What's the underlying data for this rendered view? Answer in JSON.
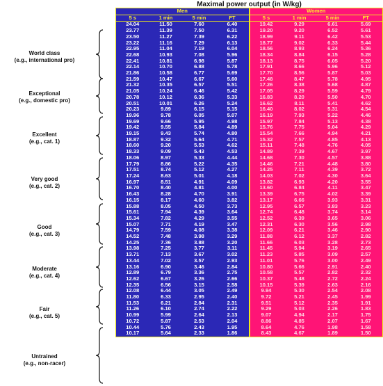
{
  "title": "Maximal power output (in W/kg)",
  "groups": {
    "men": "Men",
    "women": "Women"
  },
  "columns": [
    "5 s",
    "1 min",
    "5 min",
    "FT"
  ],
  "categories": [
    {
      "name": "World class",
      "desc": "(e.g., international pro)"
    },
    {
      "name": "Exceptional",
      "desc": "(e.g., domestic pro)"
    },
    {
      "name": "Excellent",
      "desc": "(e.g., cat. 1)"
    },
    {
      "name": "Very good",
      "desc": "(e.g., cat. 2)"
    },
    {
      "name": "Good",
      "desc": "(e.g., cat. 3)"
    },
    {
      "name": "Moderate",
      "desc": "(e.g., cat. 4)"
    },
    {
      "name": "Fair",
      "desc": "(e.g., cat. 5)"
    },
    {
      "name": "Untrained",
      "desc": "(e.g., non-racer)"
    }
  ],
  "rows": [
    [
      "24.04",
      "11.50",
      "7.60",
      "6.40",
      "19.42",
      "9.29",
      "6.61",
      "5.69"
    ],
    [
      "23.77",
      "11.39",
      "7.50",
      "6.31",
      "19.20",
      "9.20",
      "6.52",
      "5.61"
    ],
    [
      "23.50",
      "11.27",
      "7.39",
      "6.22",
      "18.99",
      "9.11",
      "6.42",
      "5.53"
    ],
    [
      "23.22",
      "11.16",
      "7.29",
      "6.13",
      "18.77",
      "9.02",
      "6.33",
      "5.44"
    ],
    [
      "22.95",
      "11.04",
      "7.19",
      "6.04",
      "18.56",
      "8.93",
      "6.24",
      "5.36"
    ],
    [
      "22.68",
      "10.93",
      "7.08",
      "5.96",
      "18.34",
      "8.84",
      "6.15",
      "5.28"
    ],
    [
      "22.41",
      "10.81",
      "6.98",
      "5.87",
      "18.13",
      "8.75",
      "6.05",
      "5.20"
    ],
    [
      "22.14",
      "10.70",
      "6.88",
      "5.78",
      "17.91",
      "8.66",
      "5.96",
      "5.12"
    ],
    [
      "21.86",
      "10.58",
      "6.77",
      "5.69",
      "17.70",
      "8.56",
      "5.87",
      "5.03"
    ],
    [
      "21.59",
      "10.47",
      "6.67",
      "5.60",
      "17.48",
      "8.47",
      "5.78",
      "4.95"
    ],
    [
      "21.32",
      "10.35",
      "6.57",
      "5.51",
      "17.26",
      "8.38",
      "5.68",
      "4.87"
    ],
    [
      "21.05",
      "10.24",
      "6.46",
      "5.42",
      "17.05",
      "8.29",
      "5.59",
      "4.79"
    ],
    [
      "20.78",
      "10.12",
      "6.36",
      "5.33",
      "16.83",
      "8.20",
      "5.50",
      "4.70"
    ],
    [
      "20.51",
      "10.01",
      "6.26",
      "5.24",
      "16.62",
      "8.11",
      "5.41",
      "4.62"
    ],
    [
      "20.23",
      "9.89",
      "6.15",
      "5.15",
      "16.40",
      "8.02",
      "5.31",
      "4.54"
    ],
    [
      "19.96",
      "9.78",
      "6.05",
      "5.07",
      "16.19",
      "7.93",
      "5.22",
      "4.46"
    ],
    [
      "19.69",
      "9.66",
      "5.95",
      "4.98",
      "15.97",
      "7.84",
      "5.13",
      "4.38"
    ],
    [
      "19.42",
      "9.55",
      "5.84",
      "4.89",
      "15.76",
      "7.75",
      "5.04",
      "4.29"
    ],
    [
      "19.15",
      "9.43",
      "5.74",
      "4.80",
      "15.54",
      "7.66",
      "4.94",
      "4.21"
    ],
    [
      "18.87",
      "9.32",
      "5.64",
      "4.71",
      "15.32",
      "7.57",
      "4.85",
      "4.13"
    ],
    [
      "18.60",
      "9.20",
      "5.53",
      "4.62",
      "15.11",
      "7.48",
      "4.76",
      "4.05"
    ],
    [
      "18.33",
      "9.09",
      "5.43",
      "4.53",
      "14.89",
      "7.39",
      "4.67",
      "3.97"
    ],
    [
      "18.06",
      "8.97",
      "5.33",
      "4.44",
      "14.68",
      "7.30",
      "4.57",
      "3.88"
    ],
    [
      "17.79",
      "8.86",
      "5.22",
      "4.35",
      "14.46",
      "7.21",
      "4.48",
      "3.80"
    ],
    [
      "17.51",
      "8.74",
      "5.12",
      "4.27",
      "14.25",
      "7.11",
      "4.39",
      "3.72"
    ],
    [
      "17.24",
      "8.63",
      "5.01",
      "4.18",
      "14.03",
      "7.02",
      "4.30",
      "3.64"
    ],
    [
      "16.97",
      "8.51",
      "4.91",
      "4.09",
      "13.82",
      "6.93",
      "4.20",
      "3.55"
    ],
    [
      "16.70",
      "8.40",
      "4.81",
      "4.00",
      "13.60",
      "6.84",
      "4.11",
      "3.47"
    ],
    [
      "16.43",
      "8.28",
      "4.70",
      "3.91",
      "13.39",
      "6.75",
      "4.02",
      "3.39"
    ],
    [
      "16.15",
      "8.17",
      "4.60",
      "3.82",
      "13.17",
      "6.66",
      "3.93",
      "3.31"
    ],
    [
      "15.88",
      "8.05",
      "4.50",
      "3.73",
      "12.95",
      "6.57",
      "3.83",
      "3.23"
    ],
    [
      "15.61",
      "7.94",
      "4.39",
      "3.64",
      "12.74",
      "6.48",
      "3.74",
      "3.14"
    ],
    [
      "15.34",
      "7.82",
      "4.29",
      "3.55",
      "12.52",
      "6.39",
      "3.65",
      "3.06"
    ],
    [
      "15.07",
      "7.71",
      "4.19",
      "3.47",
      "12.31",
      "6.30",
      "3.56",
      "2.98"
    ],
    [
      "14.79",
      "7.59",
      "4.08",
      "3.38",
      "12.09",
      "6.21",
      "3.46",
      "2.90"
    ],
    [
      "14.52",
      "7.48",
      "3.98",
      "3.29",
      "11.88",
      "6.12",
      "3.37",
      "2.82"
    ],
    [
      "14.25",
      "7.36",
      "3.88",
      "3.20",
      "11.66",
      "6.03",
      "3.28",
      "2.73"
    ],
    [
      "13.98",
      "7.25",
      "3.77",
      "3.11",
      "11.45",
      "5.94",
      "3.19",
      "2.65"
    ],
    [
      "13.71",
      "7.13",
      "3.67",
      "3.02",
      "11.23",
      "5.85",
      "3.09",
      "2.57"
    ],
    [
      "13.44",
      "7.02",
      "3.57",
      "2.93",
      "11.01",
      "5.76",
      "3.00",
      "2.49"
    ],
    [
      "13.16",
      "6.90",
      "3.46",
      "2.84",
      "10.80",
      "5.66",
      "2.91",
      "2.40"
    ],
    [
      "12.89",
      "6.79",
      "3.36",
      "2.75",
      "10.58",
      "5.57",
      "2.82",
      "2.32"
    ],
    [
      "12.62",
      "6.67",
      "3.26",
      "2.66",
      "10.37",
      "5.48",
      "2.72",
      "2.24"
    ],
    [
      "12.35",
      "6.56",
      "3.15",
      "2.58",
      "10.15",
      "5.39",
      "2.63",
      "2.16"
    ],
    [
      "12.08",
      "6.44",
      "3.05",
      "2.49",
      "9.94",
      "5.30",
      "2.54",
      "2.08"
    ],
    [
      "11.80",
      "6.33",
      "2.95",
      "2.40",
      "9.72",
      "5.21",
      "2.45",
      "1.99"
    ],
    [
      "11.53",
      "6.21",
      "2.84",
      "2.31",
      "9.51",
      "5.12",
      "2.35",
      "1.91"
    ],
    [
      "11.26",
      "6.10",
      "2.74",
      "2.22",
      "9.29",
      "5.03",
      "2.26",
      "1.83"
    ],
    [
      "10.99",
      "5.99",
      "2.64",
      "2.13",
      "9.07",
      "4.94",
      "2.17",
      "1.75"
    ],
    [
      "10.72",
      "5.87",
      "2.53",
      "2.04",
      "8.86",
      "4.85",
      "2.07",
      "1.67"
    ],
    [
      "10.44",
      "5.76",
      "2.43",
      "1.95",
      "8.64",
      "4.76",
      "1.98",
      "1.58"
    ],
    [
      "10.17",
      "5.64",
      "2.33",
      "1.86",
      "8.43",
      "4.67",
      "1.89",
      "1.50"
    ]
  ]
}
